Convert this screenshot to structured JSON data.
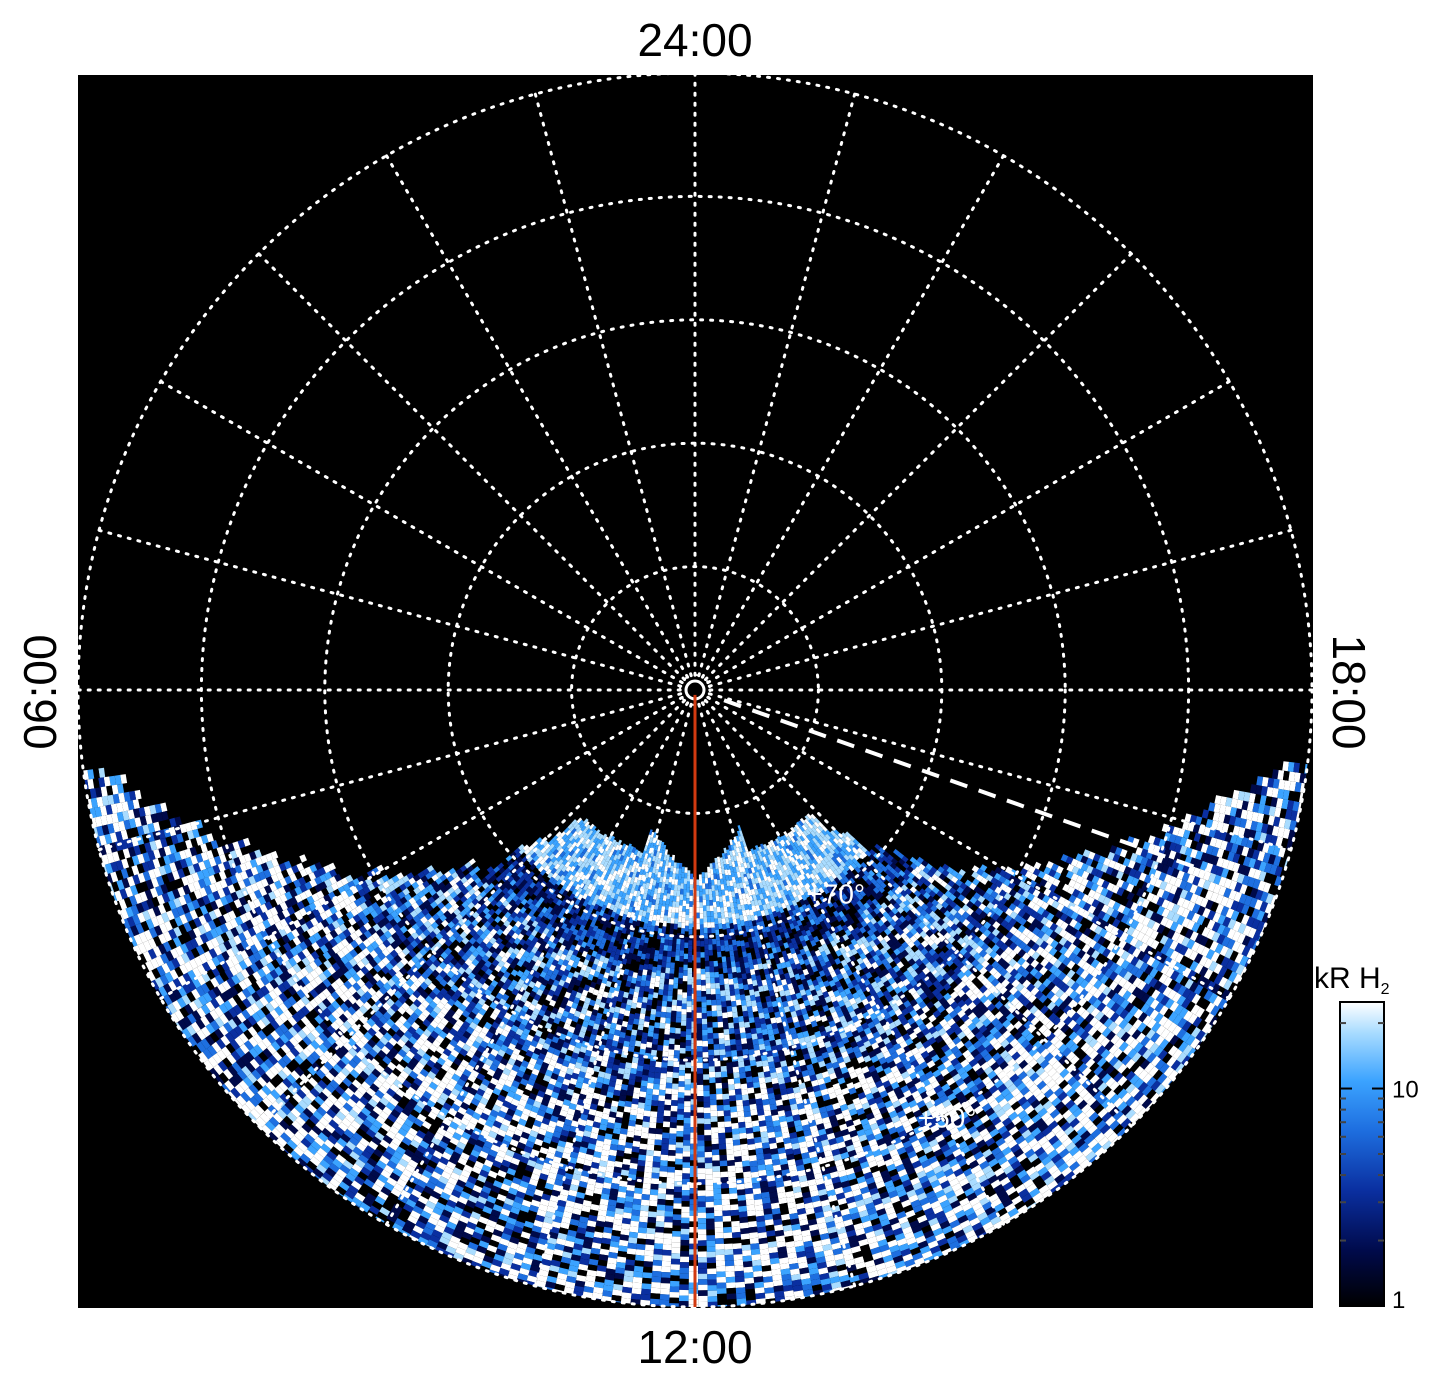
{
  "chart_data": {
    "type": "heatmap",
    "projection": "polar",
    "title": "",
    "local_time_labels": {
      "top": "24:00",
      "bottom": "12:00",
      "left": "06:00",
      "right": "18:00"
    },
    "latitude_rings_deg": [
      80,
      70,
      60,
      50
    ],
    "latitude_labels": [
      "+70°",
      "+50°"
    ],
    "meridian_step_hours": 1,
    "grid": "on",
    "grid_style": "dotted",
    "colorbar": {
      "title_main": "kR H",
      "title_sub": "2",
      "scale": "log",
      "range": [
        1,
        25
      ],
      "ticks": [
        {
          "value": 1,
          "label": "1"
        },
        {
          "value": 10,
          "label": "10"
        }
      ]
    },
    "emission_coverage_local_time_hours": [
      6.5,
      17.5
    ],
    "main_oval_colatitude_deg": [
      11,
      19
    ],
    "colors": {
      "background": "#000000",
      "grid": "#ffffff",
      "reference_meridian": "#d23a10",
      "colormap": [
        "#000000",
        "#000a4a",
        "#0a2fa0",
        "#1e6fe0",
        "#3ba3ff",
        "#a9dcff",
        "#ffffff"
      ]
    },
    "reference_meridian_local_time": "12:00",
    "dashed_line_local_time_hours": 16.7
  }
}
